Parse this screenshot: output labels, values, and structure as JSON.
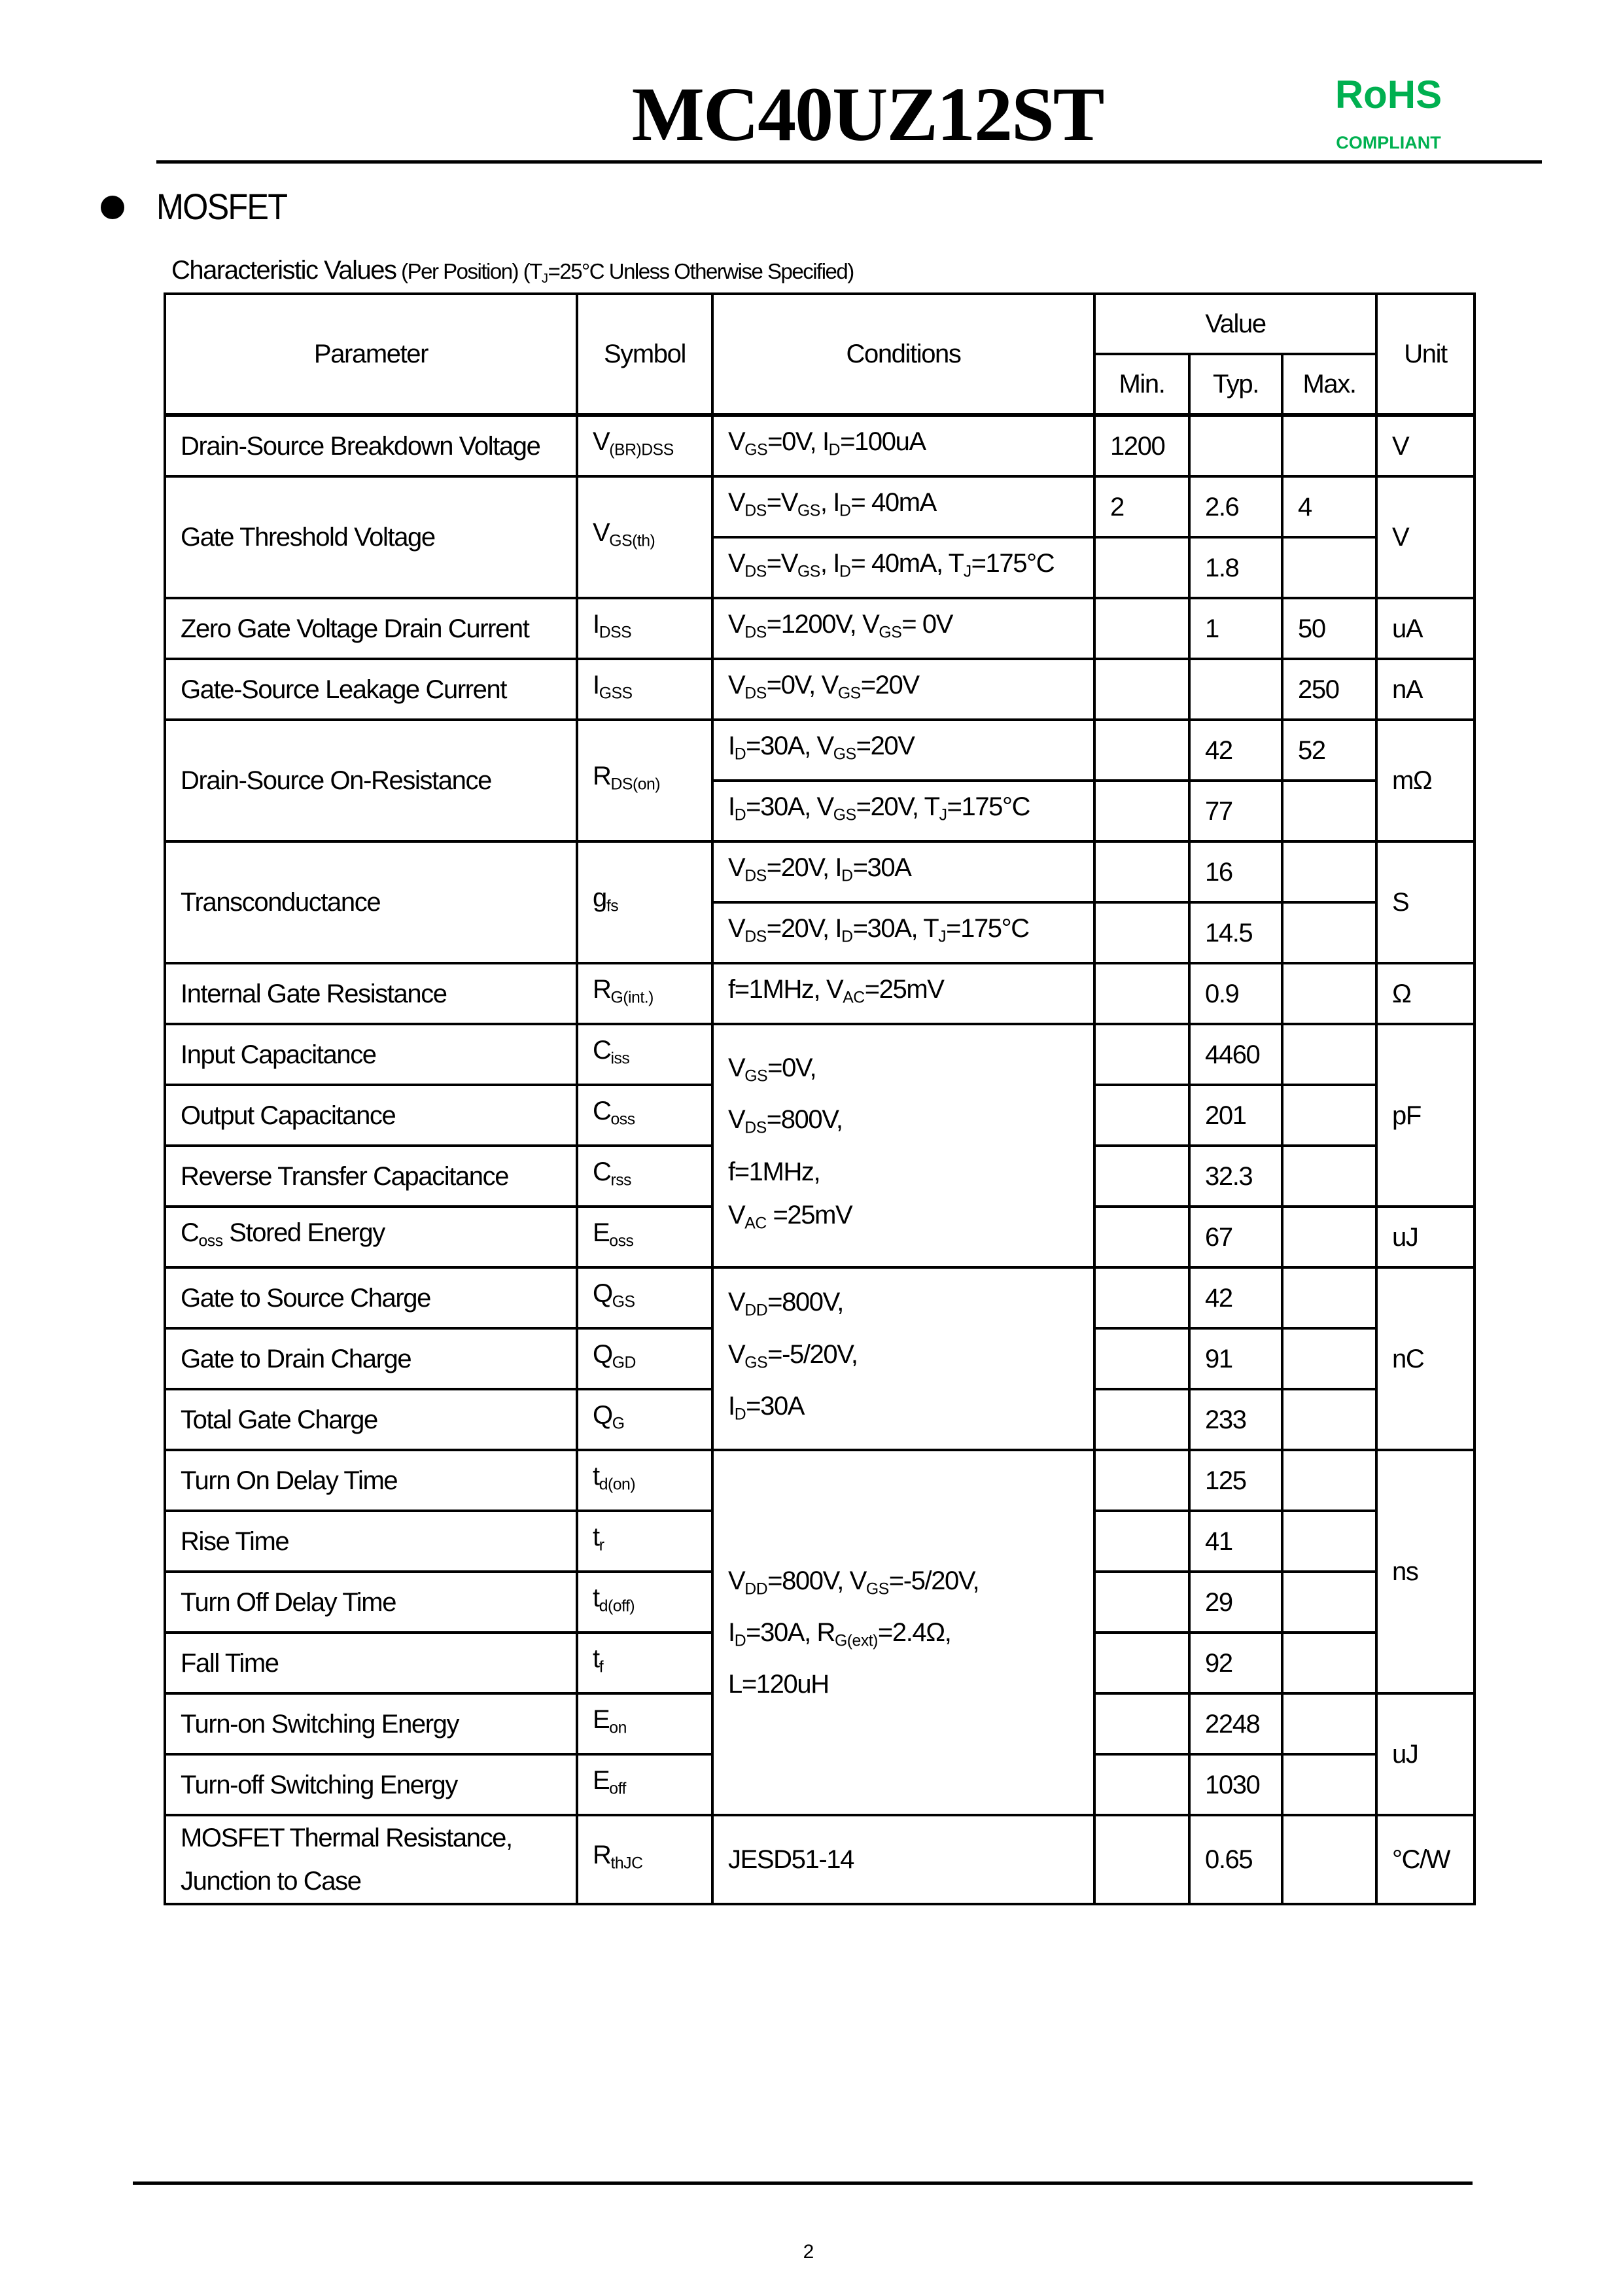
{
  "header": {
    "title": "MC40UZ12ST",
    "rohs": "RoHS",
    "compliant": "COMPLIANT",
    "rohs_color": "#00b050"
  },
  "section": {
    "title": "MOSFET"
  },
  "caption": {
    "main": "Characteristic Values",
    "sub": " (Per Position) (T_{J}=25°C Unless Otherwise Specified)"
  },
  "table": {
    "headers": {
      "parameter": "Parameter",
      "symbol": "Symbol",
      "conditions": "Conditions",
      "value": "Value",
      "min": "Min.",
      "typ": "Typ.",
      "max": "Max.",
      "unit": "Unit"
    },
    "rows": [
      {
        "param": "Drain-Source Breakdown Voltage",
        "symbol": "V_{(BR)DSS}",
        "cond": "V_{GS}=0V, I_{D}=100uA",
        "min": "1200",
        "typ": "",
        "max": "",
        "unit": "V"
      },
      {
        "param": "Gate Threshold Voltage",
        "prs": 2,
        "symbol": "V_{GS(th)}",
        "cond": "V_{DS}=V_{GS}, I_{D}= 40mA",
        "min": "2",
        "typ": "2.6",
        "max": "4",
        "unit": "V",
        "urs": 2
      },
      {
        "cond": "V_{DS}=V_{GS}, I_{D}= 40mA, T_{J}=175°C",
        "min": "",
        "typ": "1.8",
        "max": ""
      },
      {
        "param": "Zero Gate Voltage Drain Current",
        "symbol": "I_{DSS}",
        "cond": "V_{DS}=1200V, V_{GS}= 0V",
        "min": "",
        "typ": "1",
        "max": "50",
        "unit": "uA"
      },
      {
        "param": "Gate-Source Leakage Current",
        "symbol": "I_{GSS}",
        "cond": "V_{DS}=0V, V_{GS}=20V",
        "min": "",
        "typ": "",
        "max": "250",
        "unit": "nA"
      },
      {
        "param": "Drain-Source On-Resistance",
        "prs": 2,
        "symbol": "R_{DS(on)}",
        "cond": "I_{D}=30A, V_{GS}=20V",
        "min": "",
        "typ": "42",
        "max": "52",
        "unit": "mΩ",
        "urs": 2
      },
      {
        "cond": "I_{D}=30A, V_{GS}=20V, T_{J}=175°C",
        "min": "",
        "typ": "77",
        "max": ""
      },
      {
        "param": "Transconductance",
        "prs": 2,
        "symbol": "g_{fs}",
        "cond": "V_{DS}=20V, I_{D}=30A",
        "min": "",
        "typ": "16",
        "max": "",
        "unit": "S",
        "urs": 2
      },
      {
        "cond": "V_{DS}=20V, I_{D}=30A, T_{J}=175°C",
        "min": "",
        "typ": "14.5",
        "max": ""
      },
      {
        "param": "Internal Gate Resistance",
        "symbol": "R_{G(int.)}",
        "cond": "f=1MHz, V_{AC}=25mV",
        "min": "",
        "typ": "0.9",
        "max": "",
        "unit": "Ω"
      },
      {
        "param": "Input Capacitance",
        "symbol": "C_{iss}",
        "cond": "V_{GS}=0V,\nV_{DS}=800V,\nf=1MHz,\nV_{AC} =25mV",
        "crs": 4,
        "min": "",
        "typ": "4460",
        "max": "",
        "unit": "pF",
        "urs": 3
      },
      {
        "param": "Output Capacitance",
        "symbol": "C_{oss}",
        "min": "",
        "typ": "201",
        "max": ""
      },
      {
        "param": "Reverse Transfer Capacitance",
        "symbol": "C_{rss}",
        "min": "",
        "typ": "32.3",
        "max": ""
      },
      {
        "param": "C_{oss} Stored Energy",
        "symbol": "E_{oss}",
        "min": "",
        "typ": "67",
        "max": "",
        "unit": "uJ"
      },
      {
        "param": "Gate to Source Charge",
        "symbol": "Q_{GS}",
        "cond": "V_{DD}=800V,\nV_{GS}=-5/20V,\nI_{D}=30A",
        "crs": 3,
        "min": "",
        "typ": "42",
        "max": "",
        "unit": "nC",
        "urs": 3
      },
      {
        "param": "Gate to Drain Charge",
        "symbol": "Q_{GD}",
        "min": "",
        "typ": "91",
        "max": ""
      },
      {
        "param": "Total Gate Charge",
        "symbol": "Q_{G}",
        "min": "",
        "typ": "233",
        "max": ""
      },
      {
        "param": "Turn On Delay Time",
        "symbol": "t_{d(on)}",
        "cond": "V_{DD}=800V, V_{GS}=-5/20V,\nI_{D}=30A, R_{G(ext)}=2.4Ω,\nL=120uH",
        "crs": 6,
        "min": "",
        "typ": "125",
        "max": "",
        "unit": "ns",
        "urs": 4
      },
      {
        "param": "Rise Time",
        "symbol": "t_{r}",
        "min": "",
        "typ": "41",
        "max": ""
      },
      {
        "param": "Turn Off Delay Time",
        "symbol": "t_{d(off)}",
        "min": "",
        "typ": "29",
        "max": ""
      },
      {
        "param": "Fall Time",
        "symbol": "t_{f}",
        "min": "",
        "typ": "92",
        "max": ""
      },
      {
        "param": "Turn-on Switching Energy",
        "symbol": "E_{on}",
        "min": "",
        "typ": "2248",
        "max": "",
        "unit": "uJ",
        "urs": 2
      },
      {
        "param": "Turn-off Switching Energy",
        "symbol": "E_{off}",
        "min": "",
        "typ": "1030",
        "max": ""
      },
      {
        "param": "MOSFET Thermal Resistance,\nJunction to Case",
        "symbol": "R_{thJC}",
        "cond": "JESD51-14",
        "min": "",
        "typ": "0.65",
        "max": "",
        "unit": "°C/W"
      }
    ]
  },
  "footer": {
    "page": "2"
  }
}
